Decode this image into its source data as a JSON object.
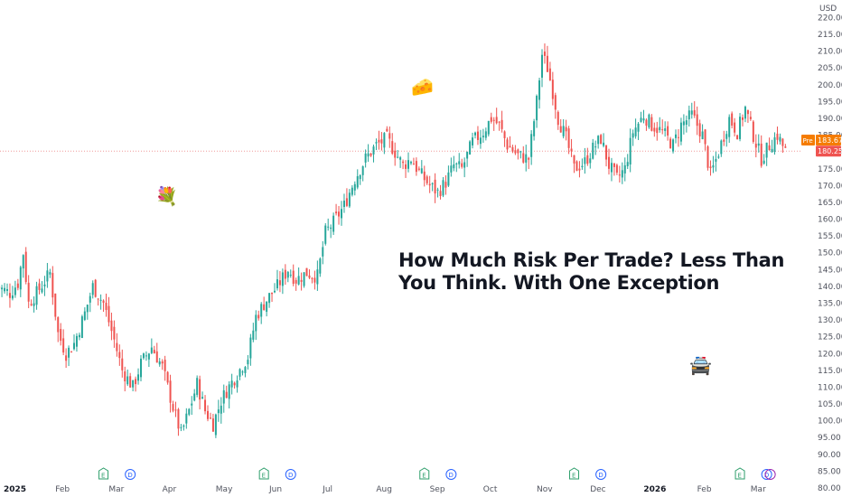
{
  "headline": {
    "line1": "How Much Risk Per Trade? Less Than",
    "line2": "You Think. With One Exception"
  },
  "stickers": {
    "bouquet": "💐",
    "cheese": "🧀",
    "police_car": "🚔"
  },
  "colors": {
    "up": "#26a69a",
    "down": "#ef5350",
    "pre_badge": "#f57c00",
    "last_badge": "#ef5350",
    "price_line": "#ef9a9a",
    "earnings": "#2e9e6b",
    "dividend": "#2962ff",
    "background": "#ffffff"
  },
  "icons": {
    "earnings_letter": "E",
    "dividend_letter": "D"
  },
  "chart_data": {
    "type": "candlestick",
    "currency": "USD",
    "ylim": [
      80,
      222
    ],
    "y_ticks": [
      "80.00",
      "85.00",
      "90.00",
      "95.00",
      "100.00",
      "105.00",
      "110.00",
      "115.00",
      "120.00",
      "125.00",
      "130.00",
      "135.00",
      "140.00",
      "145.00",
      "150.00",
      "155.00",
      "160.00",
      "165.00",
      "170.00",
      "175.00",
      "180.00",
      "185.00",
      "190.00",
      "195.00",
      "200.00",
      "205.00",
      "210.00",
      "215.00",
      "220.00"
    ],
    "x_ticks": [
      {
        "label": "2025",
        "bold": true,
        "month": 0
      },
      {
        "label": "Feb",
        "bold": false,
        "month": 1
      },
      {
        "label": "Mar",
        "bold": false,
        "month": 2
      },
      {
        "label": "Apr",
        "bold": false,
        "month": 3
      },
      {
        "label": "May",
        "bold": false,
        "month": 4
      },
      {
        "label": "Jun",
        "bold": false,
        "month": 5
      },
      {
        "label": "Jul",
        "bold": false,
        "month": 6
      },
      {
        "label": "Aug",
        "bold": false,
        "month": 7
      },
      {
        "label": "Sep",
        "bold": false,
        "month": 8
      },
      {
        "label": "Oct",
        "bold": false,
        "month": 9
      },
      {
        "label": "Nov",
        "bold": false,
        "month": 10
      },
      {
        "label": "Dec",
        "bold": false,
        "month": 11
      },
      {
        "label": "2026",
        "bold": true,
        "month": 12
      },
      {
        "label": "Feb",
        "bold": false,
        "month": 13
      },
      {
        "label": "Mar",
        "bold": false,
        "month": 14
      }
    ],
    "pre_market": {
      "label": "Pre",
      "value": "183.67"
    },
    "last_price": {
      "value": "180.25",
      "level": 180.25
    },
    "events": [
      {
        "type": "E",
        "month": 1.8
      },
      {
        "type": "D",
        "month": 2.3
      },
      {
        "type": "E",
        "month": 4.8
      },
      {
        "type": "D",
        "month": 5.3
      },
      {
        "type": "E",
        "month": 7.8
      },
      {
        "type": "D",
        "month": 8.3
      },
      {
        "type": "E",
        "month": 10.6
      },
      {
        "type": "D",
        "month": 11.1
      },
      {
        "type": "E",
        "month": 13.7
      },
      {
        "type": "D",
        "month": 14.2
      }
    ],
    "series_anchors": [
      [
        -0.2,
        140
      ],
      [
        0.05,
        138
      ],
      [
        0.2,
        141
      ],
      [
        0.3,
        150
      ],
      [
        0.4,
        135
      ],
      [
        0.55,
        138
      ],
      [
        0.8,
        144
      ],
      [
        0.95,
        126
      ],
      [
        1.1,
        120
      ],
      [
        1.25,
        123
      ],
      [
        1.45,
        132
      ],
      [
        1.6,
        140
      ],
      [
        1.8,
        135
      ],
      [
        2.0,
        124
      ],
      [
        2.15,
        115
      ],
      [
        2.35,
        110
      ],
      [
        2.5,
        117
      ],
      [
        2.7,
        122
      ],
      [
        2.9,
        116
      ],
      [
        3.1,
        104
      ],
      [
        3.25,
        96
      ],
      [
        3.4,
        103
      ],
      [
        3.55,
        111
      ],
      [
        3.7,
        103
      ],
      [
        3.85,
        99
      ],
      [
        4.0,
        106
      ],
      [
        4.1,
        109
      ],
      [
        4.3,
        114
      ],
      [
        4.5,
        119
      ],
      [
        4.65,
        131
      ],
      [
        4.85,
        136
      ],
      [
        5.05,
        140
      ],
      [
        5.25,
        145
      ],
      [
        5.4,
        142
      ],
      [
        5.6,
        144
      ],
      [
        5.8,
        143
      ],
      [
        5.95,
        156
      ],
      [
        6.1,
        159
      ],
      [
        6.3,
        164
      ],
      [
        6.5,
        172
      ],
      [
        6.7,
        178
      ],
      [
        6.9,
        182
      ],
      [
        7.1,
        184
      ],
      [
        7.25,
        180
      ],
      [
        7.4,
        176
      ],
      [
        7.55,
        178
      ],
      [
        7.7,
        174
      ],
      [
        7.9,
        170
      ],
      [
        8.05,
        168
      ],
      [
        8.2,
        171
      ],
      [
        8.35,
        176
      ],
      [
        8.5,
        175
      ],
      [
        8.7,
        183
      ],
      [
        8.9,
        186
      ],
      [
        9.05,
        190
      ],
      [
        9.2,
        188
      ],
      [
        9.35,
        182
      ],
      [
        9.55,
        179
      ],
      [
        9.75,
        178
      ],
      [
        9.9,
        195
      ],
      [
        10.0,
        209
      ],
      [
        10.1,
        205
      ],
      [
        10.2,
        198
      ],
      [
        10.3,
        190
      ],
      [
        10.45,
        184
      ],
      [
        10.6,
        175
      ],
      [
        10.8,
        177
      ],
      [
        10.95,
        181
      ],
      [
        11.1,
        184
      ],
      [
        11.25,
        176
      ],
      [
        11.4,
        172
      ],
      [
        11.55,
        175
      ],
      [
        11.7,
        186
      ],
      [
        11.9,
        191
      ],
      [
        12.05,
        188
      ],
      [
        12.25,
        186
      ],
      [
        12.45,
        182
      ],
      [
        12.6,
        188
      ],
      [
        12.8,
        191
      ],
      [
        13.0,
        185
      ],
      [
        13.15,
        173
      ],
      [
        13.3,
        180
      ],
      [
        13.5,
        190
      ],
      [
        13.65,
        186
      ],
      [
        13.8,
        193
      ],
      [
        13.95,
        185
      ],
      [
        14.1,
        178
      ],
      [
        14.25,
        182
      ],
      [
        14.4,
        185
      ],
      [
        14.55,
        180.25
      ]
    ],
    "notes": "Daily candles approximated by interpolating the anchor closes (month index on x, USD on y)."
  }
}
